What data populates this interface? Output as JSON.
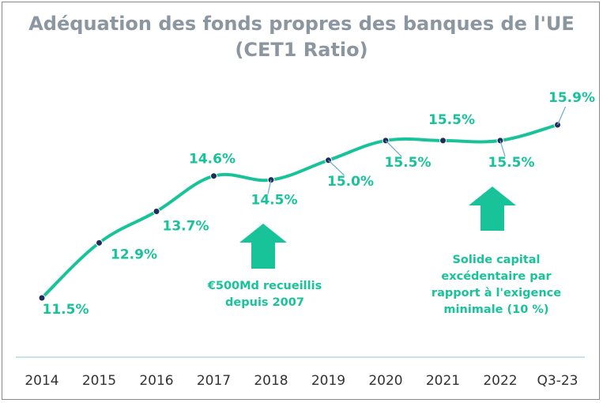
{
  "title_line1": "Adéquation des fonds propres des banques de l'UE",
  "title_line2": "(CET1 Ratio)",
  "colors": {
    "line": "#19c39a",
    "marker": "#1f2d5a",
    "title": "#8c96a0",
    "axis": "#b7d9ea"
  },
  "chart_data": {
    "type": "line",
    "title": "Adéquation des fonds propres des banques de l'UE (CET1 Ratio)",
    "categories": [
      "2014",
      "2015",
      "2016",
      "2017",
      "2018",
      "2019",
      "2020",
      "2021",
      "2022",
      "Q3-23"
    ],
    "series": [
      {
        "values": [
          11.5,
          12.9,
          13.7,
          14.6,
          14.5,
          15.0,
          15.5,
          15.5,
          15.5,
          15.9
        ]
      }
    ],
    "data_labels": [
      "11.5%",
      "12.9%",
      "13.7%",
      "14.6%",
      "14.5%",
      "15.0%",
      "15.5%",
      "15.5%",
      "15.5%",
      "15.9%"
    ],
    "ylim": [
      11.0,
      16.2
    ],
    "grid": false,
    "annotations": [
      {
        "lines": [
          "€500Md recueillis",
          "depuis 2007"
        ],
        "icon": "up-arrow-icon"
      },
      {
        "lines": [
          "Solide capital",
          "excédentaire par",
          "rapport à l'exigence",
          "minimale (10 %)"
        ],
        "icon": "up-arrow-icon"
      }
    ]
  }
}
